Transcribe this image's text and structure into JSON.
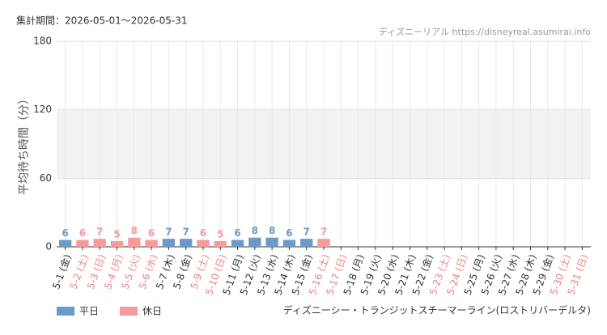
{
  "header": "集計期間：2026-05-01～2026-05-31",
  "source": "ディズニーリアル https://disneyreal.asumirai.info",
  "footer": "ディズニーシー・トランジットスチーマーライン(ロストリバーデルタ)",
  "chart_data": {
    "type": "bar",
    "y_label": "平均待ち時間（分）",
    "categories": [
      "5-1 (金)",
      "5-2 (土)",
      "5-3 (日)",
      "5-4 (月)",
      "5-5 (火)",
      "5-6 (水)",
      "5-7 (木)",
      "5-8 (金)",
      "5-9 (土)",
      "5-10 (日)",
      "5-11 (月)",
      "5-12 (火)",
      "5-13 (水)",
      "5-14 (木)",
      "5-15 (金)",
      "5-16 (土)",
      "5-17 (日)",
      "5-18 (月)",
      "5-19 (火)",
      "5-20 (水)",
      "5-21 (木)",
      "5-22 (金)",
      "5-23 (土)",
      "5-24 (日)",
      "5-25 (月)",
      "5-26 (火)",
      "5-27 (水)",
      "5-28 (木)",
      "5-29 (金)",
      "5-30 (土)",
      "5-31 (日)"
    ],
    "label_colors": [
      "#333333",
      "#f08080",
      "#f08080",
      "#f08080",
      "#f08080",
      "#f08080",
      "#333333",
      "#333333",
      "#f08080",
      "#f08080",
      "#333333",
      "#333333",
      "#333333",
      "#333333",
      "#333333",
      "#f08080",
      "#f08080",
      "#333333",
      "#333333",
      "#333333",
      "#333333",
      "#333333",
      "#f08080",
      "#f08080",
      "#333333",
      "#333333",
      "#333333",
      "#333333",
      "#333333",
      "#f08080",
      "#f08080"
    ],
    "series": [
      {
        "name": "平日",
        "color": "#6b9ac8",
        "values": [
          6,
          null,
          null,
          null,
          null,
          null,
          7,
          7,
          null,
          null,
          6,
          8,
          8,
          6,
          7,
          null,
          null,
          null,
          null,
          null,
          null,
          null,
          null,
          null,
          null,
          null,
          null,
          null,
          null,
          null,
          null
        ]
      },
      {
        "name": "休日",
        "color": "#f79a9a",
        "values": [
          null,
          6,
          7,
          5,
          8,
          6,
          null,
          null,
          6,
          5,
          null,
          null,
          null,
          null,
          null,
          7,
          null,
          null,
          null,
          null,
          null,
          null,
          null,
          null,
          null,
          null,
          null,
          null,
          null,
          null,
          null
        ]
      }
    ],
    "ylim": [
      0,
      180
    ],
    "yticks": [
      0,
      60,
      120,
      180
    ],
    "shaded_range": [
      60,
      120
    ],
    "grid": true,
    "legend": "bottom-left"
  }
}
